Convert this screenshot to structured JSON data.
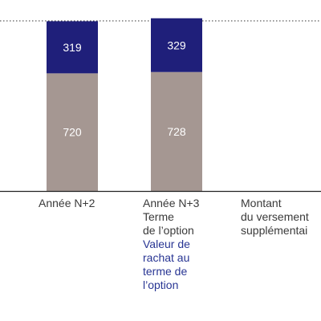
{
  "chart_data": {
    "type": "bar",
    "stacked": true,
    "categories": [
      "Année N+2",
      "Année N+3"
    ],
    "series": [
      {
        "values": [
          720,
          728
        ],
        "color": "#a59792"
      },
      {
        "values": [
          319,
          329
        ],
        "color": "#1f1f7a"
      }
    ],
    "ylim": [
      0,
      1100
    ],
    "reference_line": {
      "value": 1100,
      "style": "dotted"
    },
    "category_notes": [
      {
        "lines": [],
        "blue_lines": []
      },
      {
        "lines": [
          "Terme",
          "de l’option"
        ],
        "blue_lines": [
          "Valeur de",
          "rachat au",
          "terme de",
          "l’option"
        ]
      }
    ],
    "extra_label": {
      "lines": [
        "Montant",
        "du versement",
        "supplémentai"
      ]
    }
  }
}
